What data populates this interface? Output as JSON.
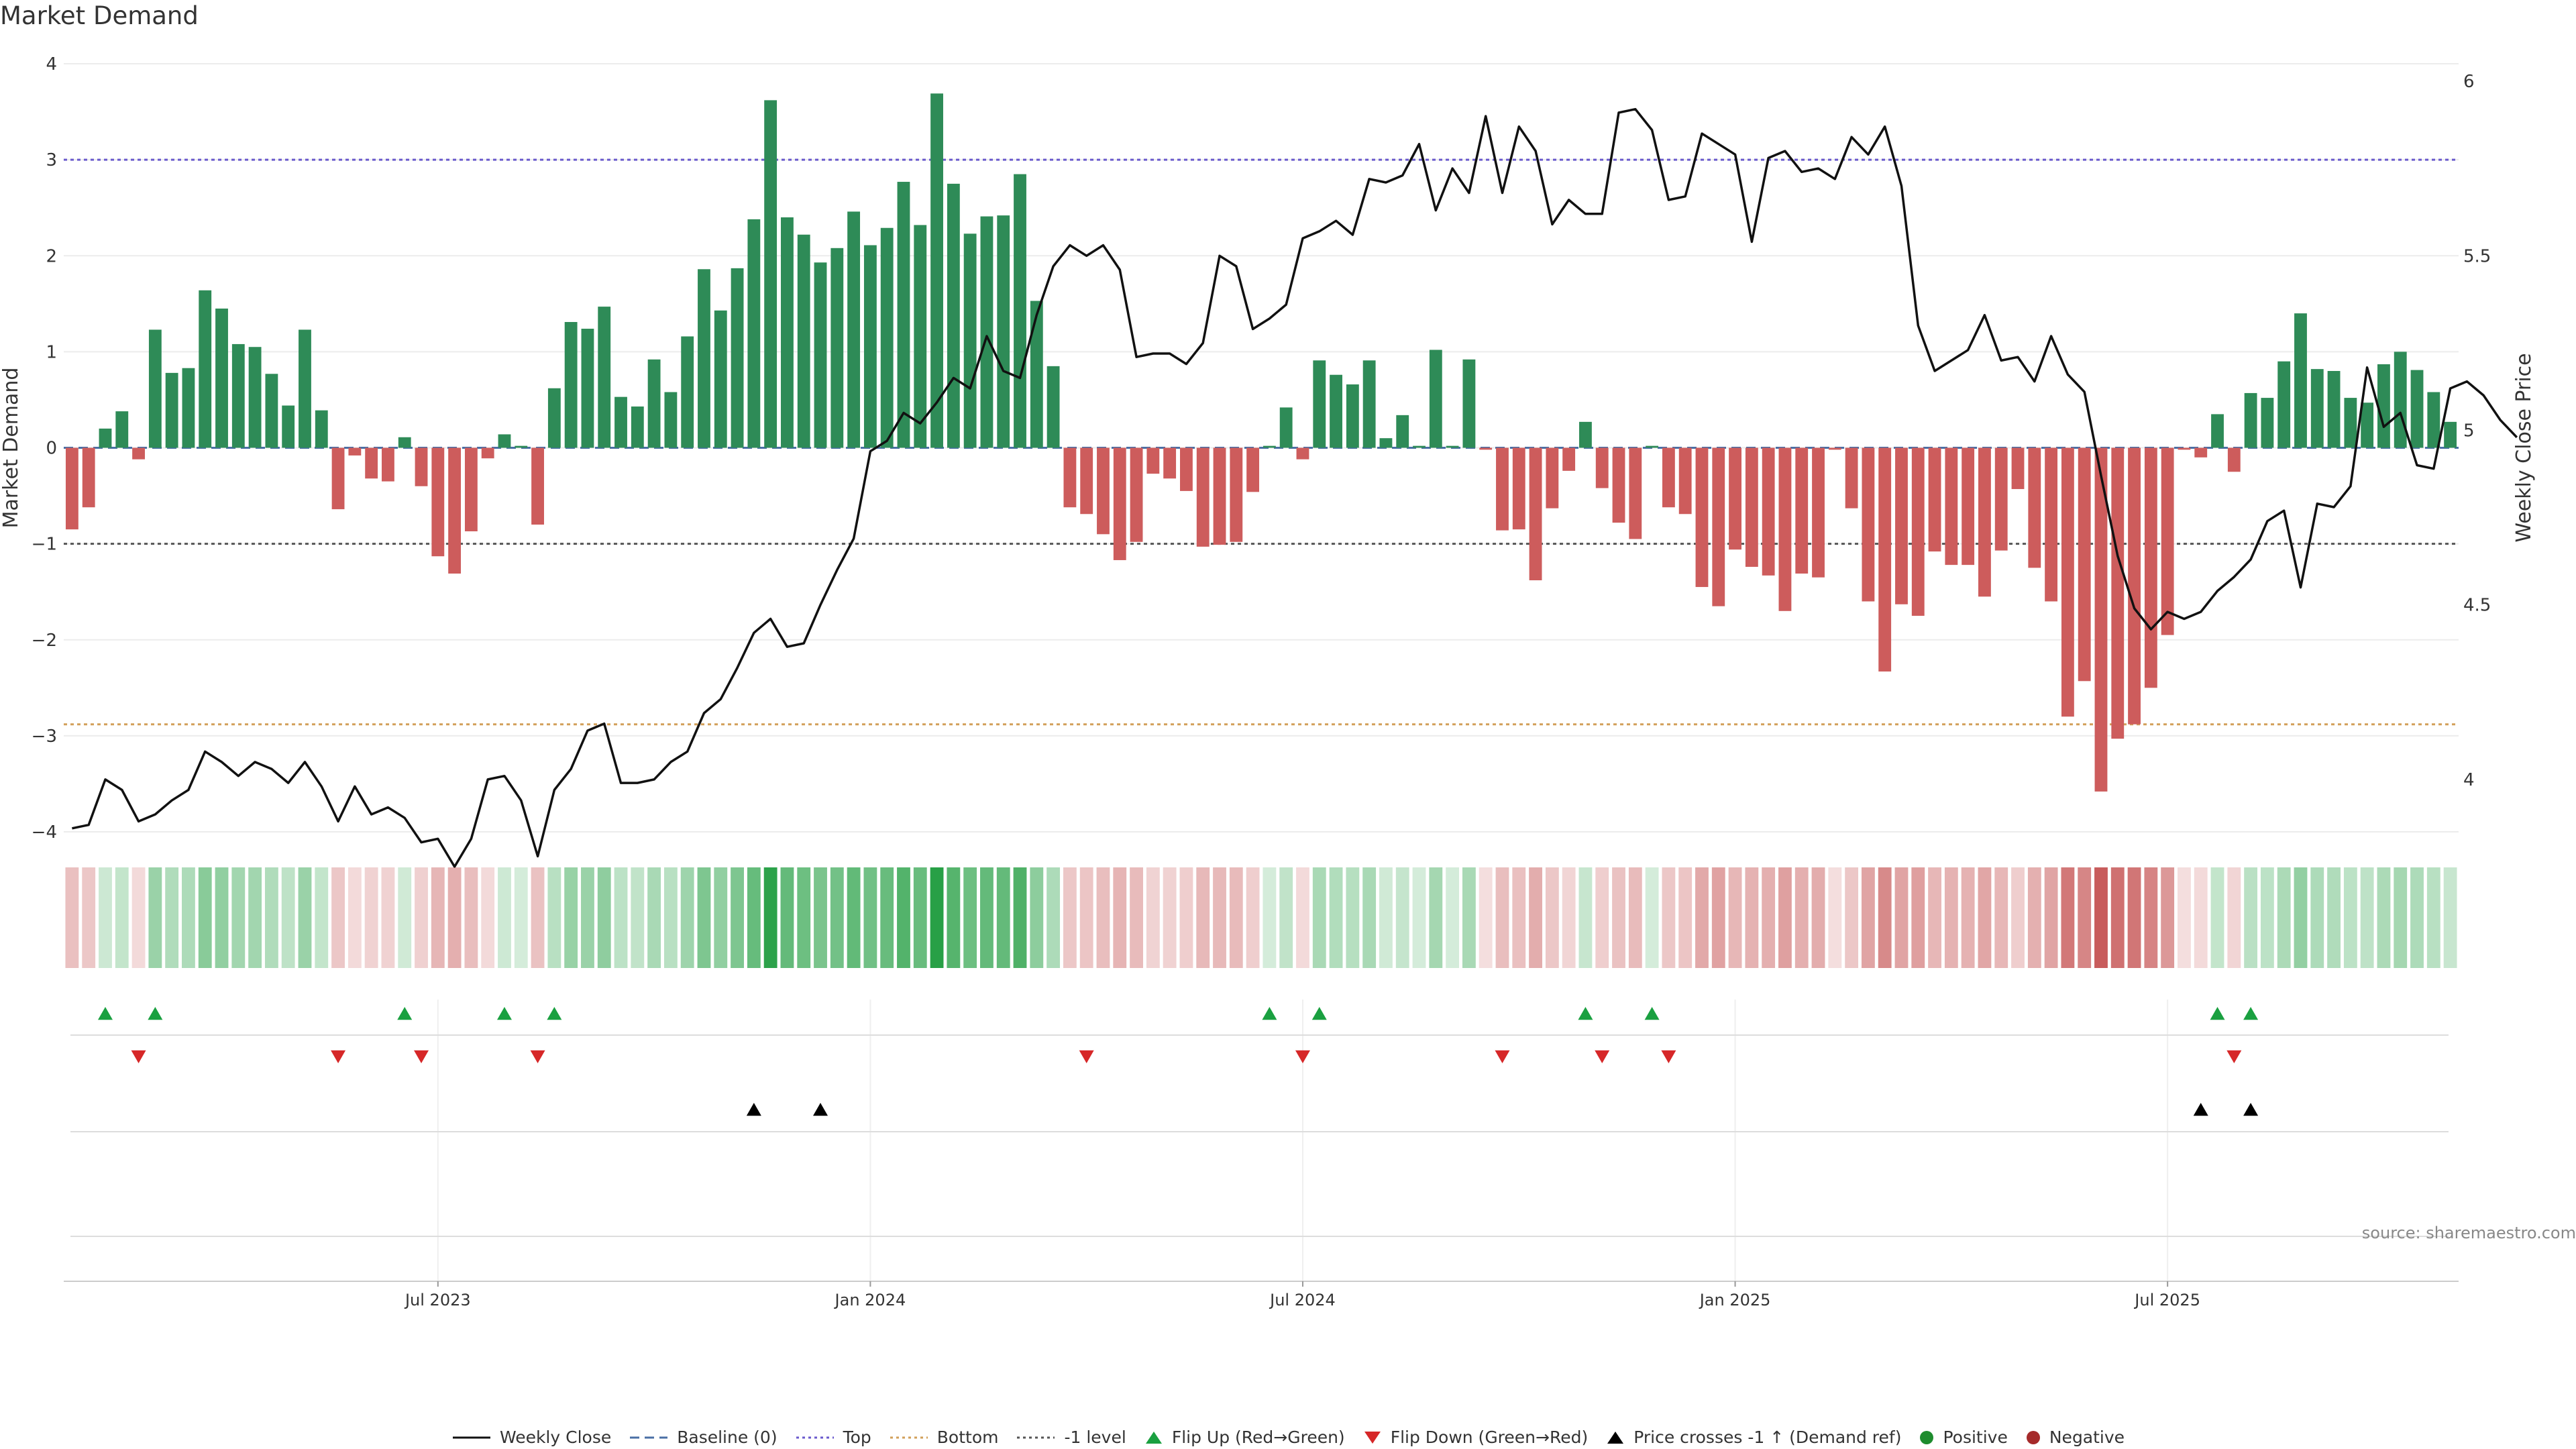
{
  "title": "Market Demand",
  "source": "source: sharemaestro.com",
  "colors": {
    "positive": "#2e8b57",
    "negative": "#cd5c5c",
    "price": "#111111",
    "top": "#6a5acd",
    "bottom": "#d2a05a",
    "minus1": "#555555",
    "baseline": "#4a6fa5",
    "flip_up": "#1aa040",
    "flip_down": "#d62728",
    "cross": "#000000",
    "legend_positive": "#1e8c2e",
    "legend_negative": "#a52a2a"
  },
  "chart_data": {
    "type": "bar+line",
    "title": "Market Demand",
    "ylabel_left": "Market Demand",
    "ylabel_right": "Weekly Close Price",
    "ylim_left": [
      -4,
      4
    ],
    "ylim_right": [
      3.85,
      6.05
    ],
    "yticks_left": [
      4,
      3,
      2,
      1,
      0,
      -1,
      -2,
      -3,
      -4
    ],
    "yticks_right": [
      6,
      5.5,
      5,
      4.5,
      4
    ],
    "reference_lines": {
      "top": 3.0,
      "bottom": -2.88,
      "minus1": -1.0,
      "baseline": 0
    },
    "x_tick_labels": [
      {
        "label": "Jul 2023",
        "week": 22
      },
      {
        "label": "Jan 2024",
        "week": 48
      },
      {
        "label": "Jul 2024",
        "week": 74
      },
      {
        "label": "Jan 2025",
        "week": 100
      },
      {
        "label": "Jul 2025",
        "week": 126
      }
    ],
    "demand": [
      -0.85,
      -0.62,
      0.2,
      0.38,
      -0.12,
      1.23,
      0.78,
      0.83,
      1.64,
      1.45,
      1.08,
      1.05,
      0.77,
      0.44,
      1.23,
      0.39,
      -0.64,
      -0.08,
      -0.32,
      -0.35,
      0.11,
      -0.4,
      -1.13,
      -1.31,
      -0.87,
      -0.11,
      0.14,
      0.02,
      -0.8,
      0.62,
      1.31,
      1.24,
      1.47,
      0.53,
      0.43,
      0.92,
      0.58,
      1.16,
      1.86,
      1.43,
      1.87,
      2.38,
      3.62,
      2.4,
      2.22,
      1.93,
      2.08,
      2.46,
      2.11,
      2.29,
      2.77,
      2.32,
      3.69,
      2.75,
      2.23,
      2.41,
      2.42,
      2.85,
      1.53,
      0.85,
      -0.62,
      -0.69,
      -0.9,
      -1.17,
      -0.98,
      -0.27,
      -0.32,
      -0.45,
      -1.03,
      -1.01,
      -0.98,
      -0.46,
      0.02,
      0.42,
      -0.12,
      0.91,
      0.76,
      0.66,
      0.91,
      0.1,
      0.34,
      0.02,
      1.02,
      0.02,
      0.92,
      -0.02,
      -0.86,
      -0.85,
      -1.38,
      -0.63,
      -0.24,
      0.27,
      -0.42,
      -0.78,
      -0.95,
      0.02,
      -0.62,
      -0.69,
      -1.45,
      -1.65,
      -1.06,
      -1.24,
      -1.33,
      -1.7,
      -1.31,
      -1.35,
      -0.02,
      -0.63,
      -1.6,
      -2.33,
      -1.63,
      -1.75,
      -1.08,
      -1.22,
      -1.22,
      -1.55,
      -1.07,
      -0.43,
      -1.25,
      -1.6,
      -2.8,
      -2.43,
      -3.58,
      -3.03,
      -2.88,
      -2.5,
      -1.95,
      -0.02,
      -0.1,
      0.35,
      -0.25,
      0.57,
      0.52,
      0.9,
      1.4,
      0.82,
      0.8,
      0.52,
      0.47,
      0.87,
      1.0,
      0.81,
      0.58,
      0.27
    ],
    "weekly_close": [
      3.86,
      3.87,
      4.0,
      3.97,
      3.88,
      3.9,
      3.94,
      3.97,
      4.08,
      4.05,
      4.01,
      4.05,
      4.03,
      3.99,
      4.05,
      3.98,
      3.88,
      3.98,
      3.9,
      3.92,
      3.89,
      3.82,
      3.83,
      3.75,
      3.83,
      4.0,
      4.01,
      3.94,
      3.78,
      3.97,
      4.03,
      4.14,
      4.16,
      3.99,
      3.99,
      4.0,
      4.05,
      4.08,
      4.19,
      4.23,
      4.32,
      4.42,
      4.46,
      4.38,
      4.39,
      4.5,
      4.6,
      4.69,
      4.94,
      4.97,
      5.05,
      5.02,
      5.08,
      5.15,
      5.12,
      5.27,
      5.17,
      5.15,
      5.33,
      5.47,
      5.53,
      5.5,
      5.53,
      5.46,
      5.21,
      5.22,
      5.22,
      5.19,
      5.25,
      5.5,
      5.47,
      5.29,
      5.32,
      5.36,
      5.55,
      5.57,
      5.6,
      5.56,
      5.72,
      5.71,
      5.73,
      5.82,
      5.63,
      5.75,
      5.68,
      5.9,
      5.68,
      5.87,
      5.8,
      5.59,
      5.66,
      5.62,
      5.62,
      5.91,
      5.92,
      5.86,
      5.66,
      5.67,
      5.85,
      5.82,
      5.79,
      5.54,
      5.78,
      5.8,
      5.74,
      5.75,
      5.72,
      5.84,
      5.79,
      5.87,
      5.7,
      5.3,
      5.17,
      5.2,
      5.23,
      5.33,
      5.2,
      5.21,
      5.14,
      5.27,
      5.16,
      5.11,
      4.87,
      4.64,
      4.49,
      4.43,
      4.48,
      4.46,
      4.48,
      4.54,
      4.58,
      4.63,
      4.74,
      4.77,
      4.55,
      4.79,
      4.78,
      4.84,
      5.18,
      5.01,
      5.05,
      4.9,
      4.89,
      5.12,
      5.14,
      5.1,
      5.03,
      4.98
    ],
    "flip_up_weeks": [
      2,
      5,
      20,
      26,
      29,
      72,
      75,
      91,
      95,
      129,
      131
    ],
    "flip_down_weeks": [
      4,
      16,
      21,
      28,
      61,
      74,
      86,
      92,
      96,
      130
    ],
    "price_cross_weeks": [
      41,
      45,
      128,
      131
    ],
    "legend": [
      "Weekly Close",
      "Baseline (0)",
      "Top",
      "Bottom",
      "-1 level",
      "Flip Up (Red→Green)",
      "Flip Down (Green→Red)",
      "Price crosses -1 ↑ (Demand ref)",
      "Positive",
      "Negative"
    ]
  }
}
